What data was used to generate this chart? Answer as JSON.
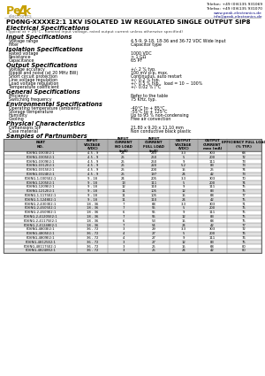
{
  "title": "PD6NG-XXXXE2:1 1KV ISOLATED 1W REGULATED SINGLE OUTPUT SIP8",
  "contact_lines": [
    "Telefon: +49 (0)6135 931069",
    "Telefax: +49 (0)6135 931070",
    "www.peak-electronics.de",
    "info@peak-electronics.de"
  ],
  "section_elec": "Electrical Specifications",
  "subtitle_elec": "(Typical at + 25°C , nominal input voltage, rated output current unless otherwise specified)",
  "sections": [
    {
      "heading": "Input Specifications",
      "items": [
        [
          "Voltage range",
          "4.5-9, 9-18, 18-36 and 36-72 VDC Wide Input"
        ],
        [
          "Filter",
          "Capacitor type"
        ]
      ]
    },
    {
      "heading": "Isolation Specifications",
      "items": [
        [
          "Rated voltage",
          "1000 VDC"
        ],
        [
          "Resistance",
          "> 1 GΩ"
        ],
        [
          "Capacitance",
          "65 PF"
        ]
      ]
    },
    {
      "heading": "Output Specifications",
      "items": [
        [
          "Voltage accuracy",
          "+/- 2 % typ."
        ],
        [
          "Ripple and noise (at 20 MHz BW)",
          "100 mV p-p, max."
        ],
        [
          "Short circuit protection",
          "Continuous, auto restart"
        ],
        [
          "Line voltage regulation",
          "+/- 0.2 % typ."
        ],
        [
          "Load voltage regulation",
          "+/- 0.5 % typ.,  load = 10 ~ 100%"
        ],
        [
          "Temperature coefficient",
          "+/- 0.02 % /°C"
        ]
      ]
    },
    {
      "heading": "General Specifications",
      "items": [
        [
          "Efficiency",
          "Refer to the table"
        ],
        [
          "Switching frequency",
          "75 KHz, typ."
        ]
      ]
    },
    {
      "heading": "Environmental Specifications",
      "items": [
        [
          "Operating temperature (ambient)",
          "-40°C to + 85°C"
        ],
        [
          "Storage temperature",
          "-55°C to + 125°C"
        ],
        [
          "Humidity",
          "Up to 95 % non-condensing"
        ],
        [
          "Cooling",
          "Free air convection"
        ]
      ]
    },
    {
      "heading": "Physical Characteristics",
      "items": [
        [
          "Dimensions SIP",
          "21.80 x 9.20 x 11.10 mm"
        ],
        [
          "Case material",
          "Non conductive black plastic"
        ]
      ]
    }
  ],
  "table_section": "Samples of Partnumbers",
  "table_headers": [
    "PART\nNO.",
    "INPUT\nVOLTAGE\n(VDC)",
    "INPUT\nCURRENT\nNO LOAD\n(mA)",
    "INPUT\nCURRENT\nFULL LOAD\n(mA)",
    "OUTPUT\nVOLTAGE\n(VDC)",
    "OUTPUT\nCURRENT\nmax (mA)",
    "EFFICIENCY FULL LOAD\n(% TYP.)"
  ],
  "table_rows": [
    [
      "PD6NG-0303E2:1",
      "4.5 - 9",
      "24",
      "245",
      "3.3",
      "303",
      "68"
    ],
    [
      "PD6NG-0305E2:1",
      "4.5 - 9",
      "25",
      "250",
      "5",
      "200",
      "72"
    ],
    [
      "PD6NG-0309E2:1",
      "4.5 - 9",
      "25",
      "250",
      "9",
      "111",
      "73"
    ],
    [
      "PD6NG-0312E2:1",
      "4.5 - 9",
      "25",
      "220",
      "5.2",
      "83",
      "73"
    ],
    [
      "PD6NG-0315E2:1",
      "4.5 - 9",
      "25",
      "200",
      "15",
      "25",
      "74"
    ],
    [
      "PD6NG-0324E2:1",
      "4.5 - 9",
      "25",
      "197",
      "24",
      "42",
      "73"
    ],
    [
      "PD6NG-1-0305E2:1",
      "9 - 18",
      "24",
      "205",
      "3.3",
      "303",
      "70"
    ],
    [
      "PD6NG-1205E2:1",
      "9 - 18",
      "13",
      "111",
      "5",
      "200",
      "74"
    ],
    [
      "PD6NG-1209E2:1",
      "9 - 18",
      "12",
      "110",
      "9",
      "111",
      "75"
    ],
    [
      "PD6NG-1212E2:1",
      "9 - 18",
      "11",
      "105",
      "12",
      "83",
      "75"
    ],
    [
      "PD6NG-1-1175E2:1",
      "9 - 18",
      "11",
      "105",
      "15",
      "68",
      "77"
    ],
    [
      "PD6NG-1-1248E2:1",
      "9 - 18",
      "11",
      "110",
      "24",
      "42",
      "75"
    ],
    [
      "PD6NG-2-4303E2:1",
      "18 - 36",
      "7",
      "68",
      "3.3",
      "303",
      "71"
    ],
    [
      "PD6NG-2-4505E2:1",
      "18 - 36",
      "7",
      "55",
      "5",
      "200",
      "75"
    ],
    [
      "PD6NG-2-4509E2:1",
      "18 - 36",
      "6",
      "55",
      "9",
      "111",
      "75"
    ],
    [
      "PD6NG-2-41205E2:1",
      "18 - 36",
      "7",
      "55",
      "12",
      "83",
      "75"
    ],
    [
      "PD6NG-2-41175E2:1",
      "18 - 36",
      "6",
      "53",
      "15",
      "68",
      "75"
    ],
    [
      "PD6NG-2-41248E2:1",
      "18 - 36",
      "7",
      "54",
      "24",
      "42",
      "77"
    ],
    [
      "PD6NG-4803E2:1",
      "36 - 72",
      "3",
      "29",
      "3.3",
      "303",
      "72"
    ],
    [
      "PD6NG-4805E2:1",
      "36 - 72",
      "4",
      "27",
      "5",
      "200",
      "76"
    ],
    [
      "PD6NG-4809E2:1",
      "36 - 72",
      "4",
      "27",
      "9",
      "111",
      "76"
    ],
    [
      "PD6NG-48125E2:1",
      "36 - 72",
      "3",
      "27",
      "12",
      "83",
      "75"
    ],
    [
      "PD6NG-481175E2:1",
      "36 - 72",
      "3",
      "25",
      "15",
      "68",
      "80"
    ],
    [
      "PD6NG-48248E2:1",
      "36 - 72",
      "3",
      "25",
      "24",
      "42",
      "80"
    ]
  ],
  "bg_color": "#ffffff",
  "header_bg": "#b0b0b0",
  "row_alt_color": "#e0e0e0",
  "border_color": "#666666",
  "logo_gold": "#c8a000",
  "logo_sub_color": "#888888",
  "text_color": "#000000",
  "heading_color": "#000000",
  "link_color": "#000080"
}
